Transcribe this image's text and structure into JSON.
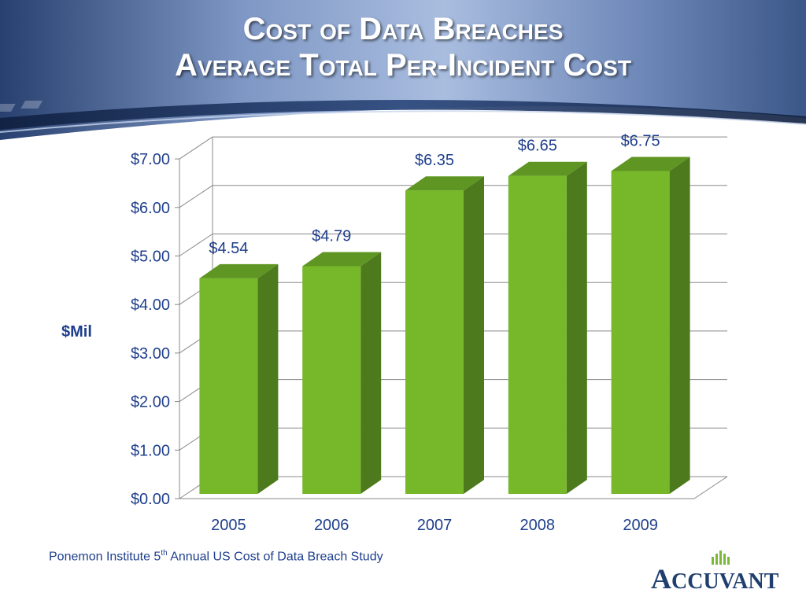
{
  "title": {
    "line1": "Cost of Data Breaches",
    "line2": "Average Total Per-Incident Cost"
  },
  "source": {
    "prefix": "Ponemon Institute 5",
    "superscript": "th",
    "suffix": " Annual US Cost of Data Breach Study"
  },
  "logo": {
    "text": "Accuvant"
  },
  "colors": {
    "bar_front": "#76b82a",
    "bar_side": "#4c7a1d",
    "bar_top": "#5f9522",
    "axis_text": "#1f3f8c",
    "header_dark": "#1e3868",
    "header_light": "#9fb3d6"
  },
  "chart_data": {
    "type": "bar",
    "categories": [
      "2005",
      "2006",
      "2007",
      "2008",
      "2009"
    ],
    "values": [
      4.54,
      4.79,
      6.35,
      6.65,
      6.75
    ],
    "data_labels": [
      "$4.54",
      "$4.79",
      "$6.35",
      "$6.65",
      "$6.75"
    ],
    "ylabel": "$Mil",
    "ylim": [
      0,
      7
    ],
    "yticks": [
      0,
      1,
      2,
      3,
      4,
      5,
      6,
      7
    ],
    "ytick_labels": [
      "$0.00",
      "$1.00",
      "$2.00",
      "$3.00",
      "$4.00",
      "$5.00",
      "$6.00",
      "$7.00"
    ],
    "grid": true,
    "legend": "none",
    "style": "3d"
  }
}
